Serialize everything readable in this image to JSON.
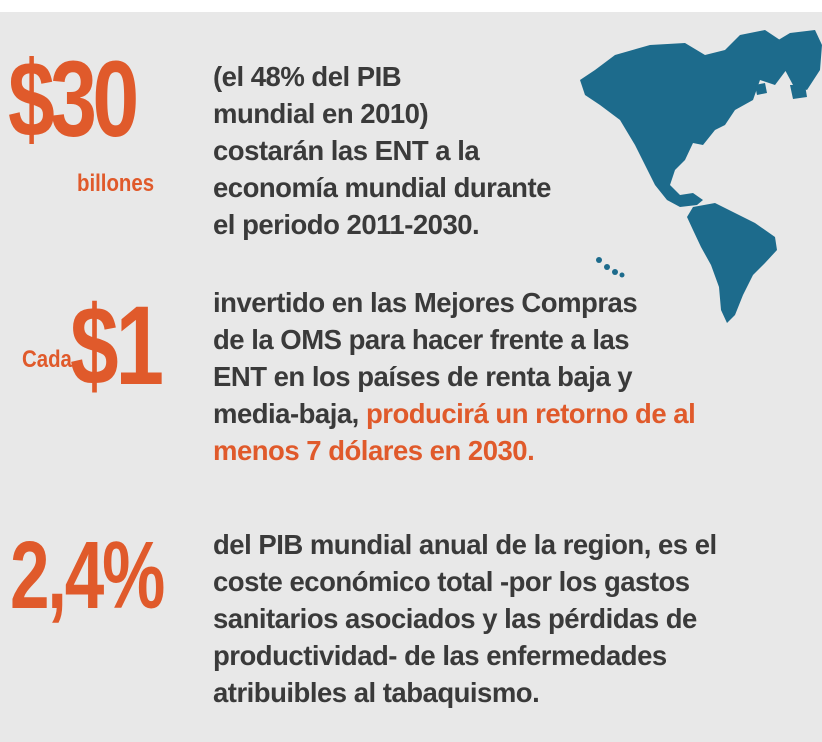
{
  "colors": {
    "accent": "#e05a2b",
    "text": "#3a3a3a",
    "map": "#1d6b8c",
    "background": "#e8e8e8"
  },
  "block1": {
    "big_value": "$30",
    "unit": "billones",
    "lines": [
      "(el 48% del PIB",
      "mundial en 2010)",
      "costarán las ENT a la",
      "economía mundial durante",
      "el periodo 2011-2030."
    ]
  },
  "block2": {
    "prefix": "Cada",
    "big_value": "$1",
    "lines": [
      "invertido en las Mejores Compras",
      "de la OMS para hacer frente a las",
      "ENT en los países de renta baja y"
    ],
    "line4_plain": "media-baja, ",
    "line4_highlight": "producirá un retorno de al",
    "line5_highlight": "menos 7 dólares en 2030."
  },
  "block3": {
    "big_value": "2,4%",
    "lines": [
      "del PIB mundial anual de la region, es el",
      "coste económico total -por los gastos",
      "sanitarios asociados y las pérdidas de",
      "productividad- de las enfermedades",
      "atribuibles al tabaquismo."
    ]
  },
  "map_icon": "world-map-americas-icon"
}
